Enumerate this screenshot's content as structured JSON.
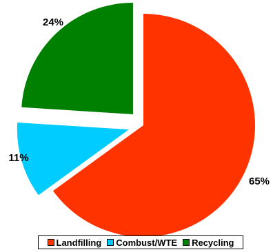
{
  "chart_data": {
    "type": "pie",
    "title": "",
    "categories": [
      "Landfilling",
      "Combust/WTE",
      "Recycling"
    ],
    "values": [
      65,
      11,
      24
    ],
    "value_labels": [
      "65%",
      "11%",
      "24%"
    ],
    "colors": [
      "#ff3300",
      "#00ccff",
      "#008000"
    ],
    "exploded": [
      false,
      true,
      true
    ],
    "legend_placement": "bottom"
  },
  "legend": {
    "items": [
      {
        "label": "Landfilling",
        "color": "#ff3300"
      },
      {
        "label": "Combust/WTE",
        "color": "#00ccff"
      },
      {
        "label": "Recycling",
        "color": "#008000"
      }
    ]
  }
}
